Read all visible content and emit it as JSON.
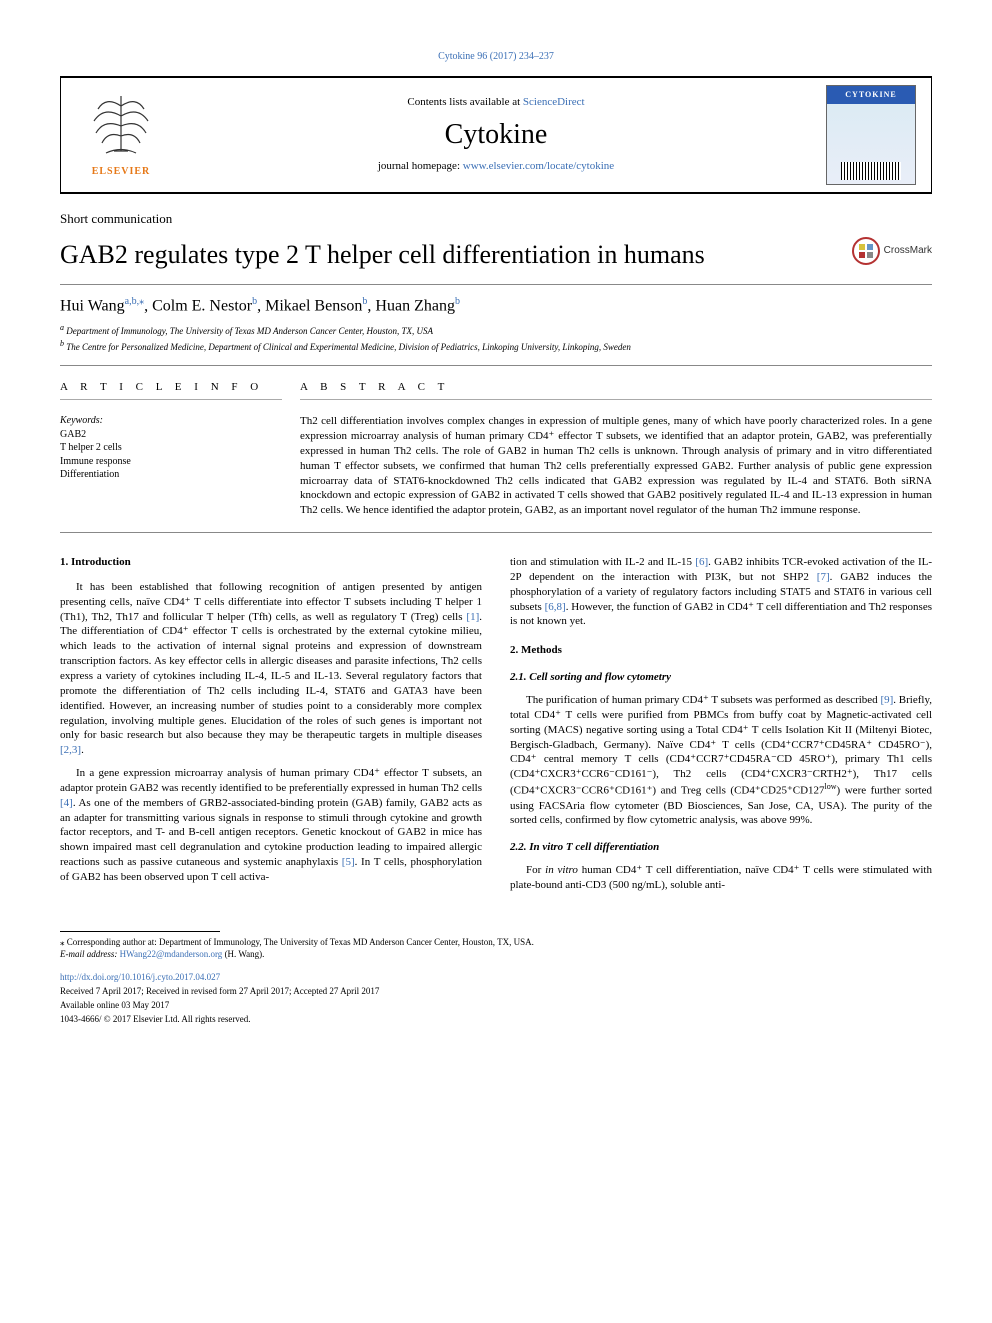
{
  "top_link": {
    "text": "Cytokine 96 (2017) 234–237",
    "url": "#"
  },
  "header": {
    "contents_pre": "Contents lists available at ",
    "contents_link": "ScienceDirect",
    "journal": "Cytokine",
    "homepage_pre": "journal homepage: ",
    "homepage_link": "www.elsevier.com/locate/cytokine",
    "publisher_label": "ELSEVIER",
    "cover_title": "CYTOKINE"
  },
  "article_type": "Short communication",
  "title": "GAB2 regulates type 2 T helper cell differentiation in humans",
  "crossmark_label": "CrossMark",
  "authors_html": "Hui Wang<span class='sup'>a,b,</span><span class='sup'>⁎</span>, Colm E. Nestor<span class='sup'>b</span>, Mikael Benson<span class='sup'>b</span>, Huan Zhang<span class='sup'>b</span>",
  "affiliations": [
    {
      "sup": "a",
      "text": "Department of Immunology, The University of Texas MD Anderson Cancer Center, Houston, TX, USA"
    },
    {
      "sup": "b",
      "text": "The Centre for Personalized Medicine, Department of Clinical and Experimental Medicine, Division of Pediatrics, Linkoping University, Linkoping, Sweden"
    }
  ],
  "info_label": "A R T I C L E  I N F O",
  "abstract_label": "A B S T R A C T",
  "keywords_label": "Keywords:",
  "keywords": [
    "GAB2",
    "T helper 2 cells",
    "Immune response",
    "Differentiation"
  ],
  "abstract": "Th2 cell differentiation involves complex changes in expression of multiple genes, many of which have poorly characterized roles. In a gene expression microarray analysis of human primary CD4⁺ effector T subsets, we identified that an adaptor protein, GAB2, was preferentially expressed in human Th2 cells. The role of GAB2 in human Th2 cells is unknown. Through analysis of primary and in vitro differentiated human T effector subsets, we confirmed that human Th2 cells preferentially expressed GAB2. Further analysis of public gene expression microarray data of STAT6-knockdowned Th2 cells indicated that GAB2 expression was regulated by IL-4 and STAT6. Both siRNA knockdown and ectopic expression of GAB2 in activated T cells showed that GAB2 positively regulated IL-4 and IL-13 expression in human Th2 cells. We hence identified the adaptor protein, GAB2, as an important novel regulator of the human Th2 immune response.",
  "left_col": {
    "h1_intro": "1. Introduction",
    "p1": "It has been established that following recognition of antigen presented by antigen presenting cells, naïve CD4⁺ T cells differentiate into effector T subsets including T helper 1 (Th1), Th2, Th17 and follicular T helper (Tfh) cells, as well as regulatory T (Treg) cells <span class='cite'>[1]</span>. The differentiation of CD4⁺ effector T cells is orchestrated by the external cytokine milieu, which leads to the activation of internal signal proteins and expression of downstream transcription factors. As key effector cells in allergic diseases and parasite infections, Th2 cells express a variety of cytokines including IL-4, IL-5 and IL-13. Several regulatory factors that promote the differentiation of Th2 cells including IL-4, STAT6 and GATA3 have been identified. However, an increasing number of studies point to a considerably more complex regulation, involving multiple genes. Elucidation of the roles of such genes is important not only for basic research but also because they may be therapeutic targets in multiple diseases <span class='cite'>[2,3]</span>.",
    "p2": "In a gene expression microarray analysis of human primary CD4⁺ effector T subsets, an adaptor protein GAB2 was recently identified to be preferentially expressed in human Th2 cells <span class='cite'>[4]</span>. As one of the members of GRB2-associated-binding protein (GAB) family, GAB2 acts as an adapter for transmitting various signals in response to stimuli through cytokine and growth factor receptors, and T- and B-cell antigen receptors. Genetic knockout of GAB2 in mice has shown impaired mast cell degranulation and cytokine production leading to impaired allergic reactions such as passive cutaneous and systemic anaphylaxis <span class='cite'>[5]</span>. In T cells, phosphorylation of GAB2 has been observed upon T cell activa-"
  },
  "right_col": {
    "p_cont": "tion and stimulation with IL-2 and IL-15 <span class='cite'>[6]</span>. GAB2 inhibits TCR-evoked activation of the IL-2P dependent on the interaction with PI3K, but not SHP2 <span class='cite'>[7]</span>. GAB2 induces the phosphorylation of a variety of regulatory factors including STAT5 and STAT6 in various cell subsets <span class='cite'>[6,8]</span>. However, the function of GAB2 in CD4⁺ T cell differentiation and Th2 responses is not known yet.",
    "h1_methods": "2. Methods",
    "h2_21": "2.1. Cell sorting and flow cytometry",
    "p21": "The purification of human primary CD4⁺ T subsets was performed as described <span class='cite'>[9]</span>. Briefly, total CD4⁺ T cells were purified from PBMCs from buffy coat by Magnetic-activated cell sorting (MACS) negative sorting using a Total CD4⁺ T cells Isolation Kit II (Miltenyi Biotec, Bergisch-Gladbach, Germany). Naïve CD4⁺ T cells (CD4⁺CCR7⁺CD45RA⁺ CD45RO⁻), CD4⁺ central memory T cells (CD4⁺CCR7⁺CD45RA⁻CD 45RO⁺), primary Th1 cells (CD4⁺CXCR3⁺CCR6⁻CD161⁻), Th2 cells (CD4⁺CXCR3⁻CRTH2⁺), Th17 cells (CD4⁺CXCR3⁻CCR6⁺CD161⁺) and Treg cells (CD4⁺CD25⁺CD127<sup>low</sup>) were further sorted using FACSAria flow cytometer (BD Biosciences, San Jose, CA, USA). The purity of the sorted cells, confirmed by flow cytometric analysis, was above 99%.",
    "h2_22": "2.2. In vitro T cell differentiation",
    "p22": "For <i>in vitro</i> human CD4⁺ T cell differentiation, naïve CD4⁺ T cells were stimulated with plate-bound anti-CD3 (500 ng/mL), soluble anti-"
  },
  "footnotes": {
    "corr": "⁎ Corresponding author at: Department of Immunology, The University of Texas MD Anderson Cancer Center, Houston, TX, USA.",
    "email_label_pre": "E-mail address: ",
    "email": "HWang22@mdanderson.org",
    "email_suffix": "(H. Wang).",
    "doi": "http://dx.doi.org/10.1016/j.cyto.2017.04.027",
    "received": "Received 7 April 2017; Received in revised form 27 April 2017; Accepted 27 April 2017",
    "available": "Available online 03 May 2017",
    "copyright": "1043-4666/ © 2017 Elsevier Ltd. All rights reserved."
  },
  "colors": {
    "link": "#3b6fb5",
    "publisher_orange": "#e67817",
    "crossmark_red": "#b43232",
    "cover_blue": "#2a5bb3"
  }
}
